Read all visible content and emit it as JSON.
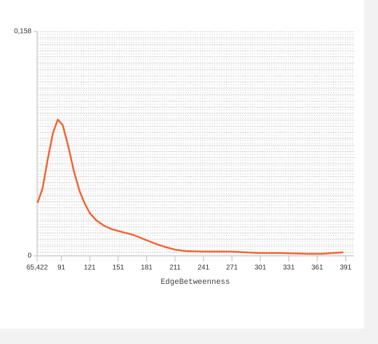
{
  "chart_data": {
    "type": "line",
    "x_label": "EdgeBetweenness",
    "x": [
      65.9,
      71.1,
      77,
      82.2,
      87.3,
      92.5,
      98.4,
      104.3,
      110.2,
      115.3,
      121.2,
      127.8,
      136,
      144.8,
      155.8,
      166.9,
      178,
      189,
      200,
      211.1,
      222.2,
      240.6,
      270,
      299.5,
      321.6,
      351,
      365.8,
      388.6
    ],
    "series": [
      {
        "color": "#f26430",
        "values": [
          0.0374,
          0.0473,
          0.0694,
          0.0866,
          0.096,
          0.092,
          0.0768,
          0.0596,
          0.0458,
          0.0374,
          0.03,
          0.0251,
          0.0212,
          0.0187,
          0.0167,
          0.0148,
          0.0118,
          0.0089,
          0.0064,
          0.0044,
          0.0034,
          0.003,
          0.003,
          0.002,
          0.002,
          0.0015,
          0.0015,
          0.0025
        ]
      }
    ],
    "xlim": [
      65.422,
      400
    ],
    "ylim": [
      0,
      0.158
    ],
    "xticks": [
      {
        "value": 65.422,
        "label": "65,422"
      },
      91,
      121,
      151,
      181,
      211,
      241,
      271,
      301,
      331,
      361,
      391
    ],
    "yticks": [
      0,
      {
        "value": 0.158,
        "label": "0,158"
      }
    ],
    "grid": true
  }
}
